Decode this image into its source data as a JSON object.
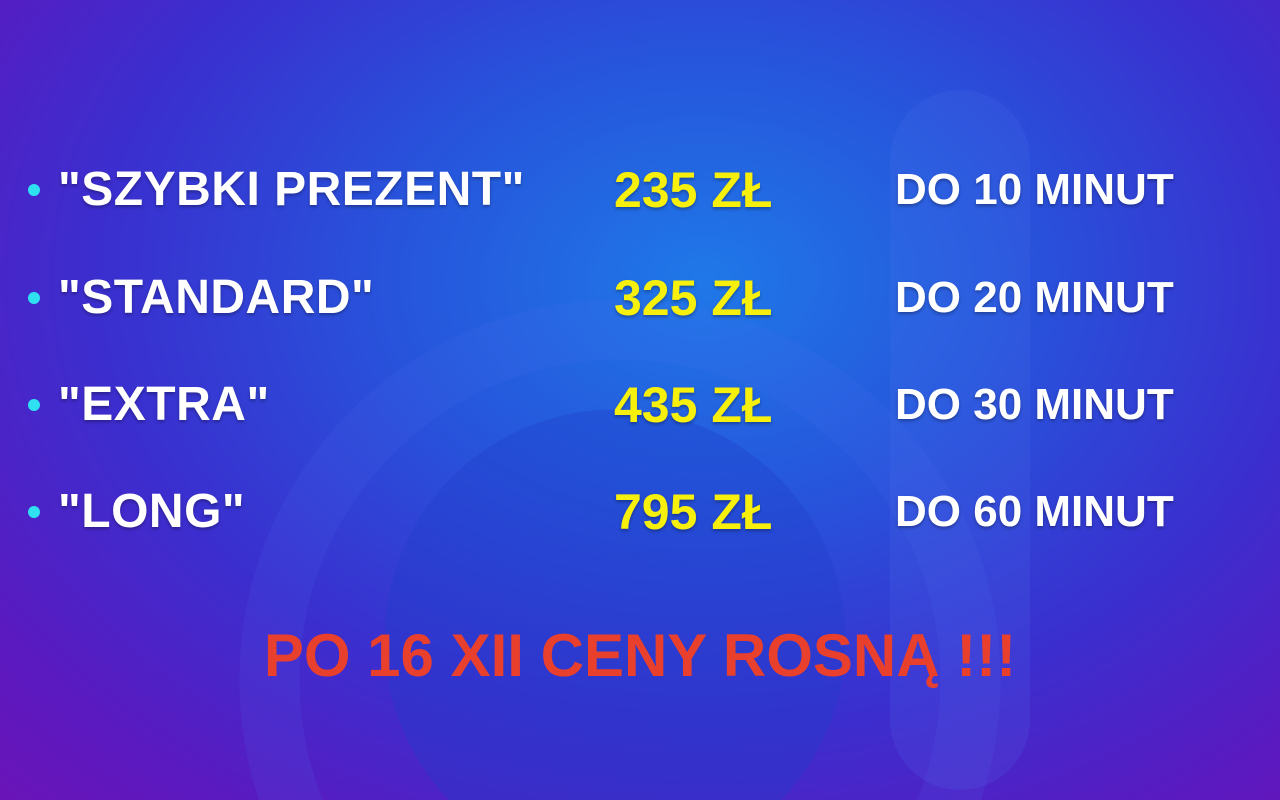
{
  "items": [
    {
      "name": "\"SZYBKI PREZENT\"",
      "price": "235 ZŁ",
      "time": "DO 10 MINUT"
    },
    {
      "name": "\"STANDARD\"",
      "price": "325 ZŁ",
      "time": "DO 20 MINUT"
    },
    {
      "name": "\"EXTRA\"",
      "price": "435 ZŁ",
      "time": "DO 30 MINUT"
    },
    {
      "name": "\"LONG\"",
      "price": "795 ZŁ",
      "time": "DO 60 MINUT"
    }
  ],
  "notice": "PO 16 XII CENY ROSNĄ !!!",
  "colors": {
    "name": "#ffffff",
    "price": "#f6f00c",
    "notice": "#e8402c",
    "bullet": "#2fe0f0"
  }
}
